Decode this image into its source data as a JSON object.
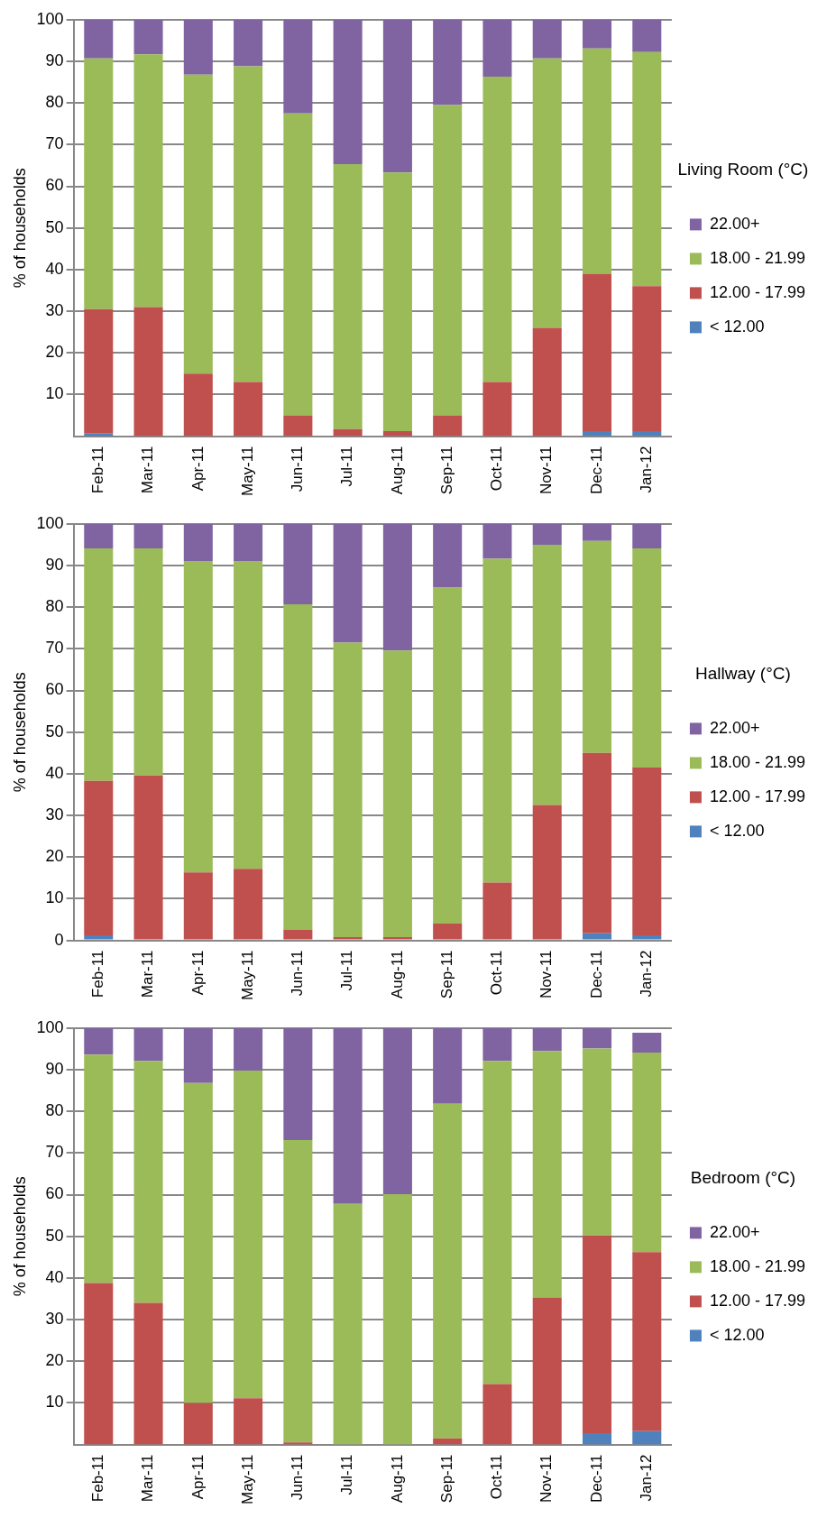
{
  "chart_data": [
    {
      "type": "bar",
      "stacked": true,
      "ylabel": "% of households",
      "legend_title": "Living Room (°C)",
      "legend": "right",
      "grid": "y",
      "categories": [
        "Feb-11",
        "Mar-11",
        "Apr-11",
        "May-11",
        "Jun-11",
        "Jul-11",
        "Aug-11",
        "Sep-11",
        "Oct-11",
        "Nov-11",
        "Dec-11",
        "Jan-12"
      ],
      "ylim": [
        0,
        100
      ],
      "yticks": [
        10,
        20,
        30,
        40,
        50,
        60,
        70,
        80,
        90,
        100
      ],
      "series": [
        {
          "name": "< 12.00",
          "color": "#4f81bd",
          "values": [
            0.7,
            0,
            0,
            0,
            0,
            0,
            0,
            0,
            0,
            0,
            1.2,
            1.2
          ]
        },
        {
          "name": "12.00 - 17.99",
          "color": "#c0504d",
          "values": [
            29.8,
            31,
            15,
            13,
            5,
            1.7,
            1.2,
            5,
            13,
            26,
            37.8,
            34.8
          ]
        },
        {
          "name": "18.00 - 21.99",
          "color": "#9bbb59",
          "values": [
            60.2,
            60.7,
            71.8,
            75.8,
            72.5,
            63.6,
            62.1,
            74.5,
            73.3,
            64.7,
            54.1,
            56.2
          ]
        },
        {
          "name": "22.00+",
          "color": "#8064a2",
          "values": [
            9.3,
            8.3,
            13.2,
            11.2,
            22.5,
            34.7,
            36.7,
            20.5,
            13.7,
            9.3,
            6.9,
            7.8
          ]
        }
      ]
    },
    {
      "type": "bar",
      "stacked": true,
      "ylabel": "% of households",
      "legend_title": "Hallway (°C)",
      "legend": "right",
      "grid": "y",
      "categories": [
        "Feb-11",
        "Mar-11",
        "Apr-11",
        "May-11",
        "Jun-11",
        "Jul-11",
        "Aug-11",
        "Sep-11",
        "Oct-11",
        "Nov-11",
        "Dec-11",
        "Jan-12"
      ],
      "ylim": [
        0,
        100
      ],
      "yticks": [
        0,
        10,
        20,
        30,
        40,
        50,
        60,
        70,
        80,
        90,
        100
      ],
      "series": [
        {
          "name": "< 12.00",
          "color": "#4f81bd",
          "values": [
            1.2,
            0,
            0,
            0,
            0,
            0,
            0,
            0,
            0,
            0,
            1.7,
            1.2
          ]
        },
        {
          "name": "12.00 - 17.99",
          "color": "#c0504d",
          "values": [
            37.1,
            39.6,
            16.3,
            17.2,
            2.5,
            0.8,
            0.8,
            4,
            13.9,
            32.5,
            43.3,
            40.3
          ]
        },
        {
          "name": "18.00 - 21.99",
          "color": "#9bbb59",
          "values": [
            55.8,
            54.5,
            74.8,
            73.9,
            78.2,
            70.7,
            68.8,
            80.7,
            77.7,
            62.5,
            50.9,
            52.6
          ]
        },
        {
          "name": "22.00+",
          "color": "#8064a2",
          "values": [
            5.9,
            5.9,
            8.9,
            8.9,
            19.3,
            28.5,
            30.4,
            15.3,
            8.4,
            5,
            4.1,
            5.9
          ]
        }
      ]
    },
    {
      "type": "bar",
      "stacked": true,
      "ylabel": "% of households",
      "legend_title": "Bedroom (°C)",
      "legend": "right",
      "grid": "y",
      "categories": [
        "Feb-11",
        "Mar-11",
        "Apr-11",
        "May-11",
        "Jun-11",
        "Jul-11",
        "Aug-11",
        "Sep-11",
        "Oct-11",
        "Nov-11",
        "Dec-11",
        "Jan-12"
      ],
      "ylim": [
        0,
        100
      ],
      "yticks": [
        10,
        20,
        30,
        40,
        50,
        60,
        70,
        80,
        90,
        100
      ],
      "series": [
        {
          "name": "< 12.00",
          "color": "#4f81bd",
          "values": [
            0,
            0,
            0,
            0,
            0,
            0,
            0,
            0,
            0,
            0,
            2.7,
            3.2
          ]
        },
        {
          "name": "12.00 - 17.99",
          "color": "#c0504d",
          "values": [
            38.8,
            34,
            10,
            11.1,
            0.5,
            0,
            0,
            1.5,
            14.5,
            35.3,
            47.5,
            43
          ]
        },
        {
          "name": "18.00 - 21.99",
          "color": "#9bbb59",
          "values": [
            54.8,
            58.1,
            76.8,
            78.7,
            72.6,
            57.8,
            60.1,
            80.3,
            77.6,
            59.2,
            44.9,
            47.9
          ]
        },
        {
          "name": "22.00+",
          "color": "#8064a2",
          "values": [
            6.4,
            7.9,
            13.2,
            10.2,
            26.9,
            42.2,
            39.9,
            18.2,
            7.9,
            5.5,
            4.9,
            4.8
          ]
        }
      ]
    }
  ]
}
